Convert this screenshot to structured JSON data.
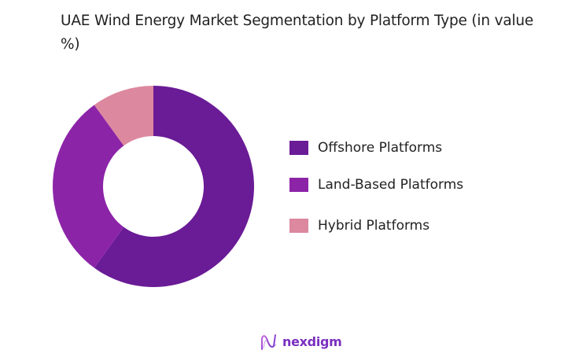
{
  "title": "UAE Wind Energy Market Segmentation by Platform Type (in value %)",
  "chart_data": {
    "type": "pie",
    "subtype": "donut",
    "title": "UAE Wind Energy Market Segmentation by Platform Type (in value %)",
    "categories": [
      "Offshore Platforms",
      "Land-Based Platforms",
      "Hybrid Platforms"
    ],
    "values": [
      60,
      30,
      10
    ],
    "colors": [
      "#6a1b96",
      "#8c24a8",
      "#dc889e"
    ],
    "start_angle": "12 o'clock, clockwise",
    "legend_position": "right",
    "data_labels": false
  },
  "legend": {
    "items": [
      {
        "label": "Offshore Platforms",
        "color": "#6a1b96"
      },
      {
        "label": "Land-Based Platforms",
        "color": "#8c24a8"
      },
      {
        "label": "Hybrid Platforms",
        "color": "#dc889e"
      }
    ]
  },
  "footer": {
    "logo_icon": "nexdigm-wave-icon",
    "logo_text": "nexdigm",
    "logo_color": "#7a2fc0"
  }
}
